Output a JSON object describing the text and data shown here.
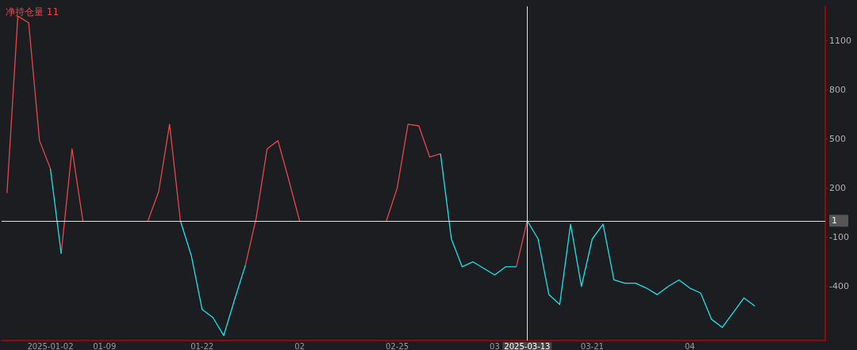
{
  "chart_data": {
    "type": "line",
    "title": "净持仓量 11",
    "categories": [
      null,
      null,
      null,
      null,
      "2025-01-02",
      null,
      null,
      null,
      null,
      "01-09",
      null,
      null,
      null,
      null,
      null,
      null,
      null,
      null,
      "01-22",
      null,
      null,
      null,
      null,
      null,
      null,
      null,
      null,
      "02",
      null,
      null,
      null,
      null,
      null,
      null,
      null,
      null,
      "02-25",
      null,
      null,
      null,
      null,
      null,
      null,
      null,
      null,
      "03",
      null,
      null,
      "2025-03-13",
      null,
      null,
      null,
      null,
      null,
      "03-21",
      null,
      null,
      null,
      null,
      null,
      null,
      null,
      null,
      "04",
      null,
      null,
      null,
      null,
      null,
      null,
      null,
      null,
      null,
      null,
      null,
      null
    ],
    "series": [
      {
        "color": "#e5484d",
        "values": [
          170,
          1250,
          1210,
          490,
          320,
          null,
          null,
          null,
          null,
          null,
          null,
          null,
          null,
          0,
          180,
          590,
          0,
          null,
          null,
          null,
          null,
          null,
          null,
          null,
          null,
          null,
          null,
          null,
          null,
          null,
          null,
          null,
          null,
          null,
          null,
          0,
          200,
          590,
          580,
          390,
          410,
          null,
          null,
          null,
          null,
          null,
          null,
          null,
          null,
          null,
          null,
          null,
          null,
          null,
          null,
          null,
          null,
          null,
          null,
          null,
          null,
          null,
          null,
          null,
          null,
          null,
          null,
          null,
          null,
          null,
          null,
          null,
          null,
          null,
          null,
          null
        ]
      },
      {
        "color": "#e5484d",
        "values": [
          null,
          null,
          null,
          null,
          null,
          -200,
          440,
          0,
          null,
          null,
          null,
          null,
          null,
          null,
          null,
          null,
          null,
          null,
          null,
          null,
          null,
          null,
          -270,
          20,
          440,
          490,
          250,
          0,
          null,
          null,
          null,
          null,
          null,
          null,
          null,
          null,
          null,
          null,
          null,
          null,
          null,
          null,
          null,
          null,
          null,
          null,
          null,
          -280,
          1,
          null,
          null,
          null,
          null,
          null,
          null,
          null,
          null,
          null,
          null,
          null,
          null,
          null,
          null,
          null,
          null,
          null,
          null,
          null,
          null,
          null,
          null,
          null,
          null,
          null,
          null,
          null
        ]
      },
      {
        "color": "#1ee3e8",
        "values": [
          null,
          null,
          null,
          null,
          320,
          -200,
          null,
          null,
          null,
          null,
          null,
          null,
          null,
          null,
          null,
          null,
          0,
          -210,
          -540,
          -590,
          -700,
          -480,
          -270,
          null,
          null,
          null,
          null,
          null,
          null,
          null,
          null,
          null,
          null,
          null,
          null,
          null,
          null,
          null,
          null,
          null,
          410,
          -110,
          -280,
          -250,
          -290,
          -330,
          -280,
          -280,
          null,
          null,
          null,
          null,
          null,
          null,
          null,
          null,
          null,
          null,
          null,
          null,
          null,
          null,
          null,
          null,
          null,
          null,
          null,
          null,
          null,
          null,
          null,
          null,
          null,
          null,
          null,
          null
        ]
      },
      {
        "color": "#1ee3e8",
        "values": [
          null,
          null,
          null,
          null,
          null,
          null,
          null,
          null,
          null,
          null,
          null,
          null,
          null,
          null,
          null,
          null,
          null,
          null,
          null,
          null,
          null,
          null,
          null,
          null,
          null,
          null,
          null,
          null,
          null,
          null,
          null,
          null,
          null,
          null,
          null,
          null,
          null,
          null,
          null,
          null,
          null,
          null,
          null,
          null,
          null,
          null,
          null,
          null,
          1,
          -110,
          -450,
          -510,
          -20,
          -400,
          -110,
          -20,
          -360,
          -380,
          -380,
          -410,
          -450,
          -400,
          -360,
          -410,
          -440,
          -600,
          -650,
          -560,
          -470,
          -520,
          null,
          null,
          null,
          null,
          null,
          null
        ]
      }
    ],
    "ylim": [
      -730,
      1310
    ],
    "yticks": [
      -400,
      -100,
      200,
      500,
      800,
      1100
    ],
    "ref_lines": [
      {
        "axis": "y",
        "value": 1,
        "label": "1",
        "color": "#e0e0e0"
      },
      {
        "axis": "x",
        "value": "2025-03-13",
        "label": null,
        "color": "#e0e0e0"
      }
    ]
  }
}
